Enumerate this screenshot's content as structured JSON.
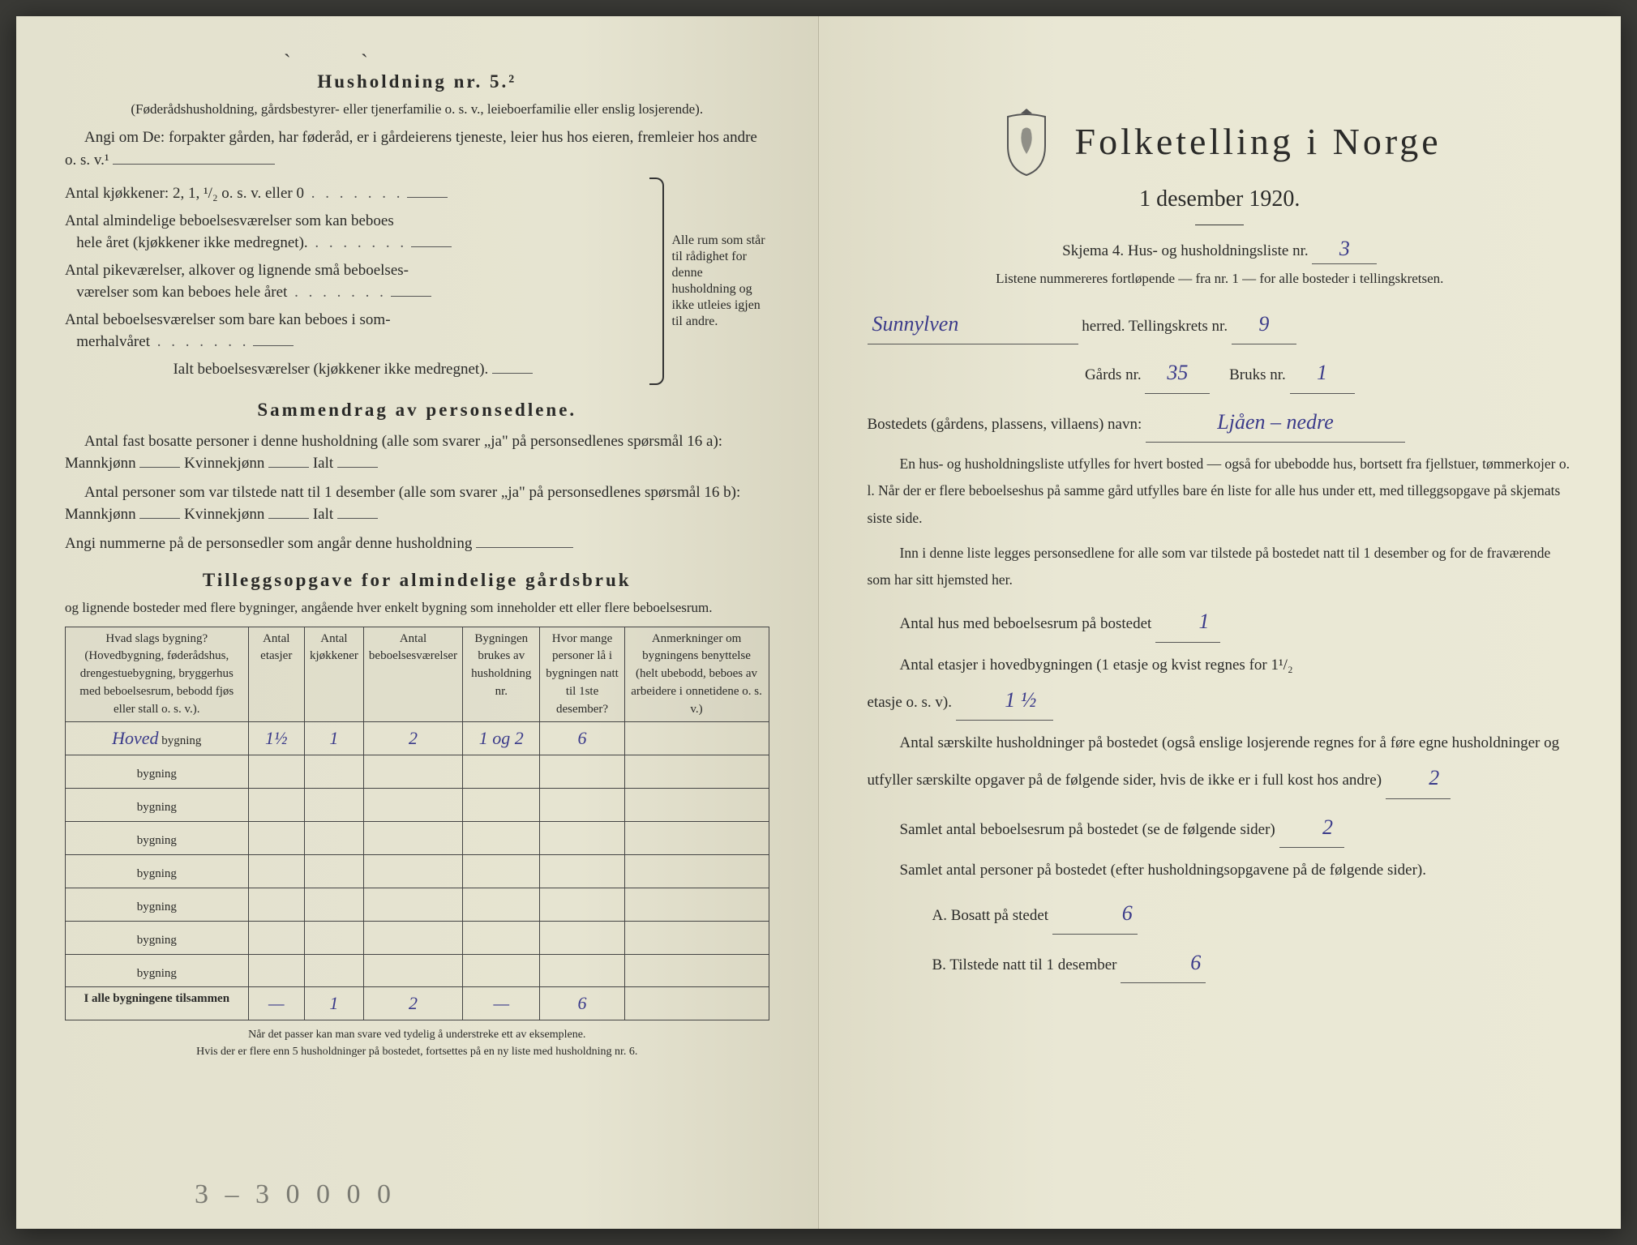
{
  "left": {
    "household_heading": "Husholdning nr. 5.²",
    "household_sub": "(Føderådshusholdning, gårdsbestyrer- eller tjenerfamilie o. s. v., leieboerfamilie eller enslig losjerende).",
    "angi_line": "Angi om De: forpakter gården, har føderåd, er i gårdeierens tjeneste, leier hus hos eieren, fremleier hos andre o. s. v.¹",
    "rooms": {
      "l1": "Antal kjøkkener: 2, 1, ¹/₂ o. s. v. eller 0",
      "l2a": "Antal almindelige beboelsesværelser som kan beboes",
      "l2b": "hele året (kjøkkener ikke medregnet).",
      "l3a": "Antal pikeværelser, alkover og lignende små beboelses-",
      "l3b": "værelser som kan beboes hele året",
      "l4a": "Antal beboelsesværelser som bare kan beboes i som-",
      "l4b": "merhalvåret",
      "l5": "Ialt beboelsesværelser (kjøkkener ikke medregnet).",
      "brace_text": "Alle rum som står til rådighet for denne husholdning og ikke utleies igjen til andre."
    },
    "summary_heading": "Sammendrag av personsedlene.",
    "summary_p1": "Antal fast bosatte personer i denne husholdning (alle som svarer „ja\" på personsedlenes spørsmål 16 a): Mannkjønn",
    "summary_kv": "Kvinnekjønn",
    "summary_ialt": "Ialt",
    "summary_p2": "Antal personer som var tilstede natt til 1 desember (alle som svarer „ja\" på personsedlenes spørsmål 16 b): Mannkjønn",
    "summary_p3": "Angi nummerne på de personsedler som angår denne husholdning",
    "tillegg_heading": "Tilleggsopgave for almindelige gårdsbruk",
    "tillegg_sub": "og lignende bosteder med flere bygninger, angående hver enkelt bygning som inneholder ett eller flere beboelsesrum.",
    "table": {
      "headers": [
        "Hvad slags bygning?\n(Hovedbygning, føderådshus, drengestuebygning, bryggerhus med beboelsesrum, bebodd fjøs eller stall o. s. v.).",
        "Antal etasjer",
        "Antal kjøkkener",
        "Antal beboelsesværelser",
        "Bygningen brukes av husholdning nr.",
        "Hvor mange personer lå i bygningen natt til 1ste desember?",
        "Anmerkninger om bygningens benyttelse (helt ubebodd, beboes av arbeidere i onnetidene o. s. v.)"
      ],
      "row_suffix": "bygning",
      "rows": [
        {
          "label": "Hoved",
          "etasjer": "1½",
          "kjokken": "1",
          "vaer": "2",
          "hush": "1 og 2",
          "pers": "6",
          "anm": ""
        },
        {
          "label": "",
          "etasjer": "",
          "kjokken": "",
          "vaer": "",
          "hush": "",
          "pers": "",
          "anm": ""
        },
        {
          "label": "",
          "etasjer": "",
          "kjokken": "",
          "vaer": "",
          "hush": "",
          "pers": "",
          "anm": ""
        },
        {
          "label": "",
          "etasjer": "",
          "kjokken": "",
          "vaer": "",
          "hush": "",
          "pers": "",
          "anm": ""
        },
        {
          "label": "",
          "etasjer": "",
          "kjokken": "",
          "vaer": "",
          "hush": "",
          "pers": "",
          "anm": ""
        },
        {
          "label": "",
          "etasjer": "",
          "kjokken": "",
          "vaer": "",
          "hush": "",
          "pers": "",
          "anm": ""
        },
        {
          "label": "",
          "etasjer": "",
          "kjokken": "",
          "vaer": "",
          "hush": "",
          "pers": "",
          "anm": ""
        },
        {
          "label": "",
          "etasjer": "",
          "kjokken": "",
          "vaer": "",
          "hush": "",
          "pers": "",
          "anm": ""
        }
      ],
      "total_label": "I alle bygningene tilsammen",
      "total": {
        "etasjer": "—",
        "kjokken": "1",
        "vaer": "2",
        "hush": "—",
        "pers": "6",
        "anm": ""
      }
    },
    "footnote": "Når det passer kan man svare ved tydelig å understreke ett av eksemplene.\nHvis der er flere enn 5 husholdninger på bostedet, fortsettes på en ny liste med husholdning nr. 6.",
    "pencil_bottom": "3 – 3 0 0  0 0"
  },
  "right": {
    "title": "Folketelling i Norge",
    "date": "1 desember 1920.",
    "skjema_line": "Skjema 4.  Hus- og husholdningsliste nr.",
    "skjema_nr": "3",
    "listene": "Listene nummereres fortløpende — fra nr. 1 — for alle bosteder i tellingskretsen.",
    "herred_label": "herred.  Tellingskrets nr.",
    "herred_value": "Sunnylven",
    "krets_nr": "9",
    "gards_label": "Gårds nr.",
    "gards_nr": "35",
    "bruks_label": "Bruks nr.",
    "bruks_nr": "1",
    "bosted_label": "Bostedets (gårdens, plassens, villaens) navn:",
    "bosted_value": "Ljåen – nedre",
    "p1": "En hus- og husholdningsliste utfylles for hvert bosted — også for ubebodde hus, bortsett fra fjellstuer, tømmerkojer o. l.  Når der er flere beboelseshus på samme gård utfylles bare én liste for alle hus under ett, med tilleggsopgave på skjemats siste side.",
    "p2": "Inn i denne liste legges personsedlene for alle som var tilstede på bostedet natt til 1 desember og for de fraværende som har sitt hjemsted her.",
    "q1_label": "Antal hus med beboelsesrum på bostedet",
    "q1_val": "1",
    "q2_label_a": "Antal etasjer i hovedbygningen (1 etasje og kvist regnes for 1¹/₂",
    "q2_label_b": "etasje o. s. v).",
    "q2_val": "1 ½",
    "q3_label": "Antal særskilte husholdninger på bostedet (også enslige losjerende regnes for å føre egne husholdninger og utfyller særskilte opgaver på de følgende sider, hvis de ikke er i full kost hos andre)",
    "q3_val": "2",
    "q4_label": "Samlet antal beboelsesrum på bostedet (se de følgende sider)",
    "q4_val": "2",
    "q5_label": "Samlet antal personer på bostedet (efter husholdningsopgavene på de følgende sider).",
    "q5a_label": "A.  Bosatt på stedet",
    "q5a_val": "6",
    "q5b_label": "B.  Tilstede natt til 1 desember",
    "q5b_val": "6"
  },
  "colors": {
    "paper": "#e8e6d4",
    "ink": "#2a2a28",
    "handwriting": "#3b3b8a",
    "pencil": "#7a7a72"
  }
}
